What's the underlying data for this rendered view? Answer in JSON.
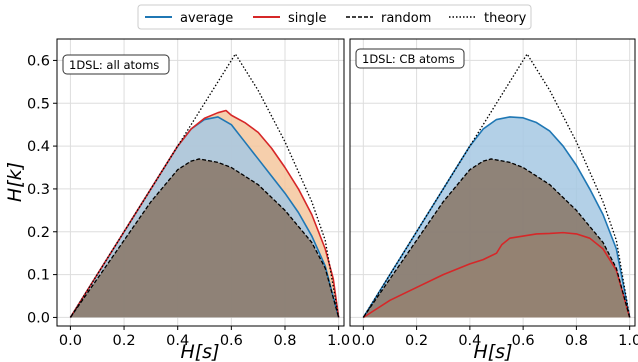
{
  "chart_data": [
    {
      "type": "area",
      "annotation": "1DSL: all atoms",
      "xlabel": "H[s]",
      "ylabel": "H[k]",
      "xlim": [
        -0.05,
        1.02
      ],
      "ylim": [
        -0.02,
        0.65
      ],
      "xticks": [
        "0.0",
        "0.2",
        "0.4",
        "0.6",
        "0.8",
        "1.0"
      ],
      "yticks": [
        "0.0",
        "0.1",
        "0.2",
        "0.3",
        "0.4",
        "0.5",
        "0.6"
      ],
      "grid": true,
      "series": [
        {
          "name": "average",
          "style": "solid",
          "color": "#1f77b4",
          "x": [
            0,
            0.1,
            0.2,
            0.3,
            0.4,
            0.45,
            0.5,
            0.55,
            0.6,
            0.65,
            0.7,
            0.75,
            0.8,
            0.85,
            0.9,
            0.95,
            1.0
          ],
          "y": [
            0,
            0.1,
            0.2,
            0.3,
            0.4,
            0.44,
            0.462,
            0.468,
            0.45,
            0.41,
            0.37,
            0.33,
            0.29,
            0.245,
            0.19,
            0.12,
            0.0
          ]
        },
        {
          "name": "single",
          "style": "solid",
          "color": "#d62728",
          "x": [
            0,
            0.1,
            0.2,
            0.3,
            0.4,
            0.45,
            0.5,
            0.55,
            0.58,
            0.6,
            0.65,
            0.7,
            0.75,
            0.8,
            0.85,
            0.9,
            0.95,
            0.98,
            1.0
          ],
          "y": [
            0,
            0.1,
            0.2,
            0.3,
            0.4,
            0.44,
            0.465,
            0.478,
            0.483,
            0.472,
            0.455,
            0.432,
            0.395,
            0.35,
            0.3,
            0.24,
            0.16,
            0.09,
            0.0
          ]
        },
        {
          "name": "random",
          "style": "dashed",
          "color": "#000000",
          "x": [
            0,
            0.1,
            0.2,
            0.3,
            0.4,
            0.45,
            0.48,
            0.55,
            0.6,
            0.7,
            0.8,
            0.9,
            0.95,
            1.0
          ],
          "y": [
            0,
            0.09,
            0.18,
            0.27,
            0.345,
            0.365,
            0.37,
            0.362,
            0.35,
            0.31,
            0.25,
            0.175,
            0.115,
            0.0
          ]
        },
        {
          "name": "theory",
          "style": "dotted",
          "color": "#000000",
          "x": [
            0,
            0.1,
            0.2,
            0.3,
            0.4,
            0.5,
            0.615,
            0.7,
            0.8,
            0.9,
            0.95,
            1.0
          ],
          "y": [
            0,
            0.1,
            0.2,
            0.3,
            0.4,
            0.5,
            0.615,
            0.53,
            0.41,
            0.27,
            0.18,
            0.0
          ]
        }
      ]
    },
    {
      "type": "area",
      "annotation": "1DSL: CB atoms",
      "xlabel": "H[s]",
      "ylabel": "",
      "xlim": [
        -0.05,
        1.02
      ],
      "ylim": [
        -0.02,
        0.65
      ],
      "xticks": [
        "0.0",
        "0.2",
        "0.4",
        "0.6",
        "0.8",
        "1.0"
      ],
      "yticks": [],
      "grid": true,
      "series": [
        {
          "name": "average",
          "style": "solid",
          "color": "#1f77b4",
          "x": [
            0,
            0.1,
            0.2,
            0.3,
            0.4,
            0.45,
            0.5,
            0.55,
            0.6,
            0.65,
            0.7,
            0.75,
            0.8,
            0.85,
            0.9,
            0.95,
            1.0
          ],
          "y": [
            0,
            0.1,
            0.2,
            0.3,
            0.4,
            0.44,
            0.462,
            0.468,
            0.466,
            0.455,
            0.435,
            0.4,
            0.355,
            0.3,
            0.24,
            0.16,
            0.0
          ]
        },
        {
          "name": "single",
          "style": "solid",
          "color": "#d62728",
          "x": [
            0,
            0.05,
            0.1,
            0.2,
            0.3,
            0.4,
            0.45,
            0.5,
            0.52,
            0.55,
            0.6,
            0.65,
            0.7,
            0.75,
            0.8,
            0.85,
            0.9,
            0.95,
            1.0
          ],
          "y": [
            0,
            0.02,
            0.04,
            0.07,
            0.1,
            0.125,
            0.135,
            0.15,
            0.17,
            0.185,
            0.19,
            0.195,
            0.196,
            0.198,
            0.195,
            0.185,
            0.16,
            0.11,
            0.0
          ]
        },
        {
          "name": "random",
          "style": "dashed",
          "color": "#000000",
          "x": [
            0,
            0.1,
            0.2,
            0.3,
            0.4,
            0.45,
            0.48,
            0.55,
            0.6,
            0.7,
            0.8,
            0.9,
            0.95,
            1.0
          ],
          "y": [
            0,
            0.09,
            0.18,
            0.27,
            0.345,
            0.365,
            0.37,
            0.362,
            0.35,
            0.31,
            0.25,
            0.175,
            0.115,
            0.0
          ]
        },
        {
          "name": "theory",
          "style": "dotted",
          "color": "#000000",
          "x": [
            0,
            0.1,
            0.2,
            0.3,
            0.4,
            0.5,
            0.615,
            0.7,
            0.8,
            0.9,
            0.95,
            1.0
          ],
          "y": [
            0,
            0.1,
            0.2,
            0.3,
            0.4,
            0.5,
            0.615,
            0.53,
            0.41,
            0.27,
            0.18,
            0.0
          ]
        }
      ]
    }
  ],
  "legend": {
    "placement": "top-center",
    "entries": [
      {
        "label": "average",
        "style": "solid",
        "color": "#1f77b4"
      },
      {
        "label": "single",
        "style": "solid",
        "color": "#d62728"
      },
      {
        "label": "random",
        "style": "dashed",
        "color": "#000000"
      },
      {
        "label": "theory",
        "style": "dotted",
        "color": "#000000"
      }
    ]
  },
  "fill_colors": {
    "average": "#a6c8e3",
    "single": "#f5c79e",
    "random": "#8b7a6b"
  }
}
